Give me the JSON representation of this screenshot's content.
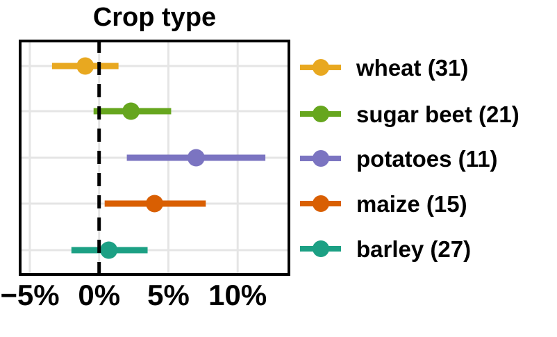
{
  "title": "Crop type",
  "colors": {
    "background": "#ffffff",
    "text": "#000000",
    "plot_border": "#000000",
    "gridline": "#e5e5e5",
    "reference_line": "#000000"
  },
  "chart_data": {
    "type": "scatter",
    "subtype": "pointrange-forest",
    "orientation": "horizontal",
    "title": "Crop type",
    "xlabel": "",
    "ylabel": "",
    "x_unit": "%",
    "xlim": [
      -5.8,
      13.8
    ],
    "grid": true,
    "legend_position": "right",
    "reference_line": {
      "x": 0,
      "style": "dashed",
      "color": "#000000"
    },
    "x_ticks": [
      {
        "value": -5,
        "label": "−5%"
      },
      {
        "value": 0,
        "label": "0%"
      },
      {
        "value": 5,
        "label": "5%"
      },
      {
        "value": 10,
        "label": "10%"
      }
    ],
    "series": [
      {
        "name": "wheat",
        "n": 31,
        "label": "wheat (31)",
        "estimate": -1.0,
        "ci_low": -3.4,
        "ci_high": 1.4,
        "color": "#e8a820"
      },
      {
        "name": "sugar beet",
        "n": 21,
        "label": "sugar beet (21)",
        "estimate": 2.3,
        "ci_low": -0.4,
        "ci_high": 5.2,
        "color": "#66a61e"
      },
      {
        "name": "potatoes",
        "n": 11,
        "label": "potatoes (11)",
        "estimate": 7.0,
        "ci_low": 2.0,
        "ci_high": 12.0,
        "color": "#7b74c1"
      },
      {
        "name": "maize",
        "n": 15,
        "label": "maize (15)",
        "estimate": 4.0,
        "ci_low": 0.4,
        "ci_high": 7.7,
        "color": "#d95f02"
      },
      {
        "name": "barley",
        "n": 27,
        "label": "barley (27)",
        "estimate": 0.7,
        "ci_low": -2.0,
        "ci_high": 3.5,
        "color": "#1ca084"
      }
    ]
  }
}
